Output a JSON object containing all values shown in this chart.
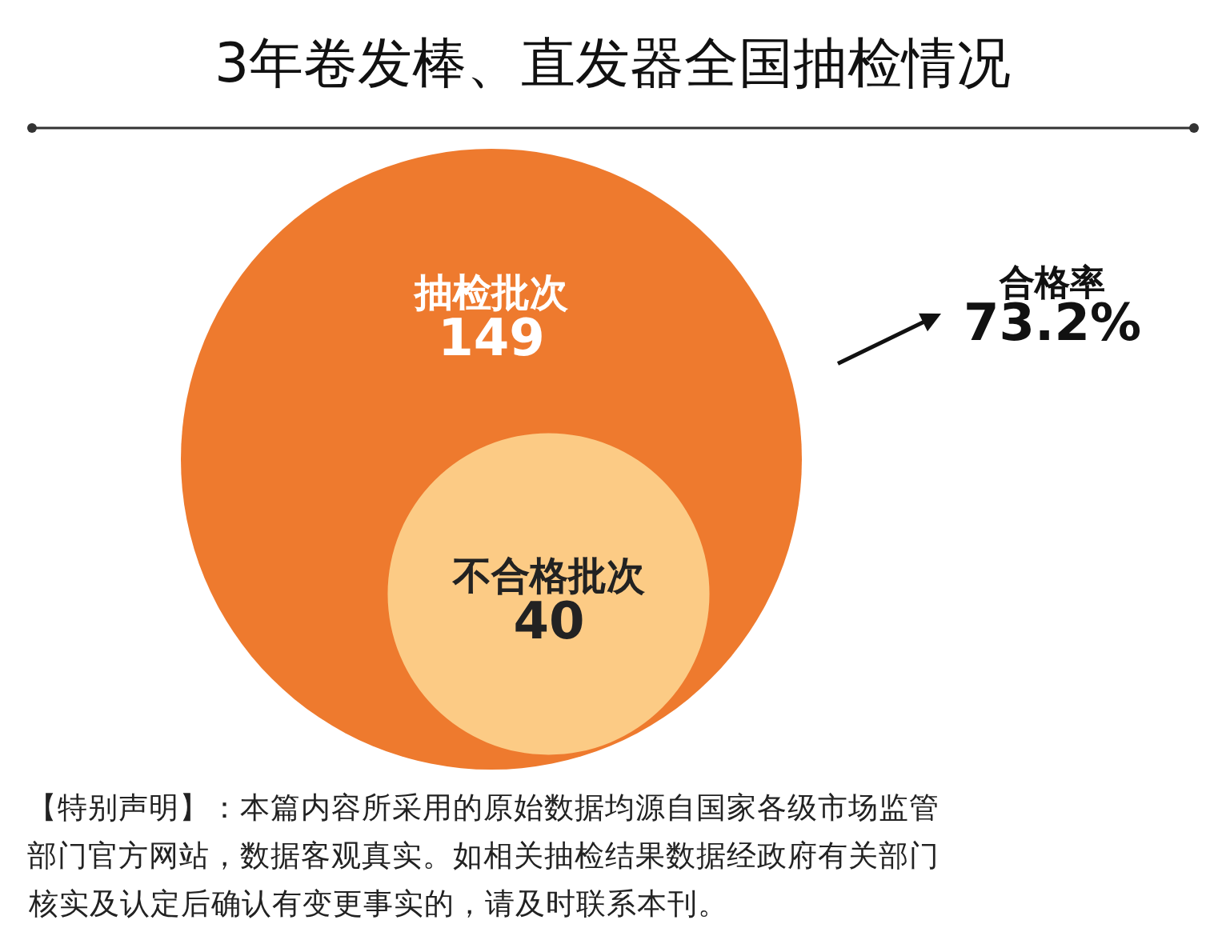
{
  "chart_data": {
    "type": "other",
    "title": "3年卷发棒、直发器全国抽检情况",
    "categories": [
      "抽检批次",
      "不合格批次"
    ],
    "values": [
      149,
      40
    ],
    "colors": [
      "#ee7a2e",
      "#fccb85"
    ],
    "data_labels": true,
    "annotations": [
      "合格率\n73.2%",
      "【特别声明】：本篇内容所采用的原始数据均源自国家各级市场监管",
      "部门官方网站，数据客观真实。如相关抽检结果数据经政府有关部门",
      "核实及认定后确认有变更事实的，请及时联系本刊。"
    ]
  }
}
